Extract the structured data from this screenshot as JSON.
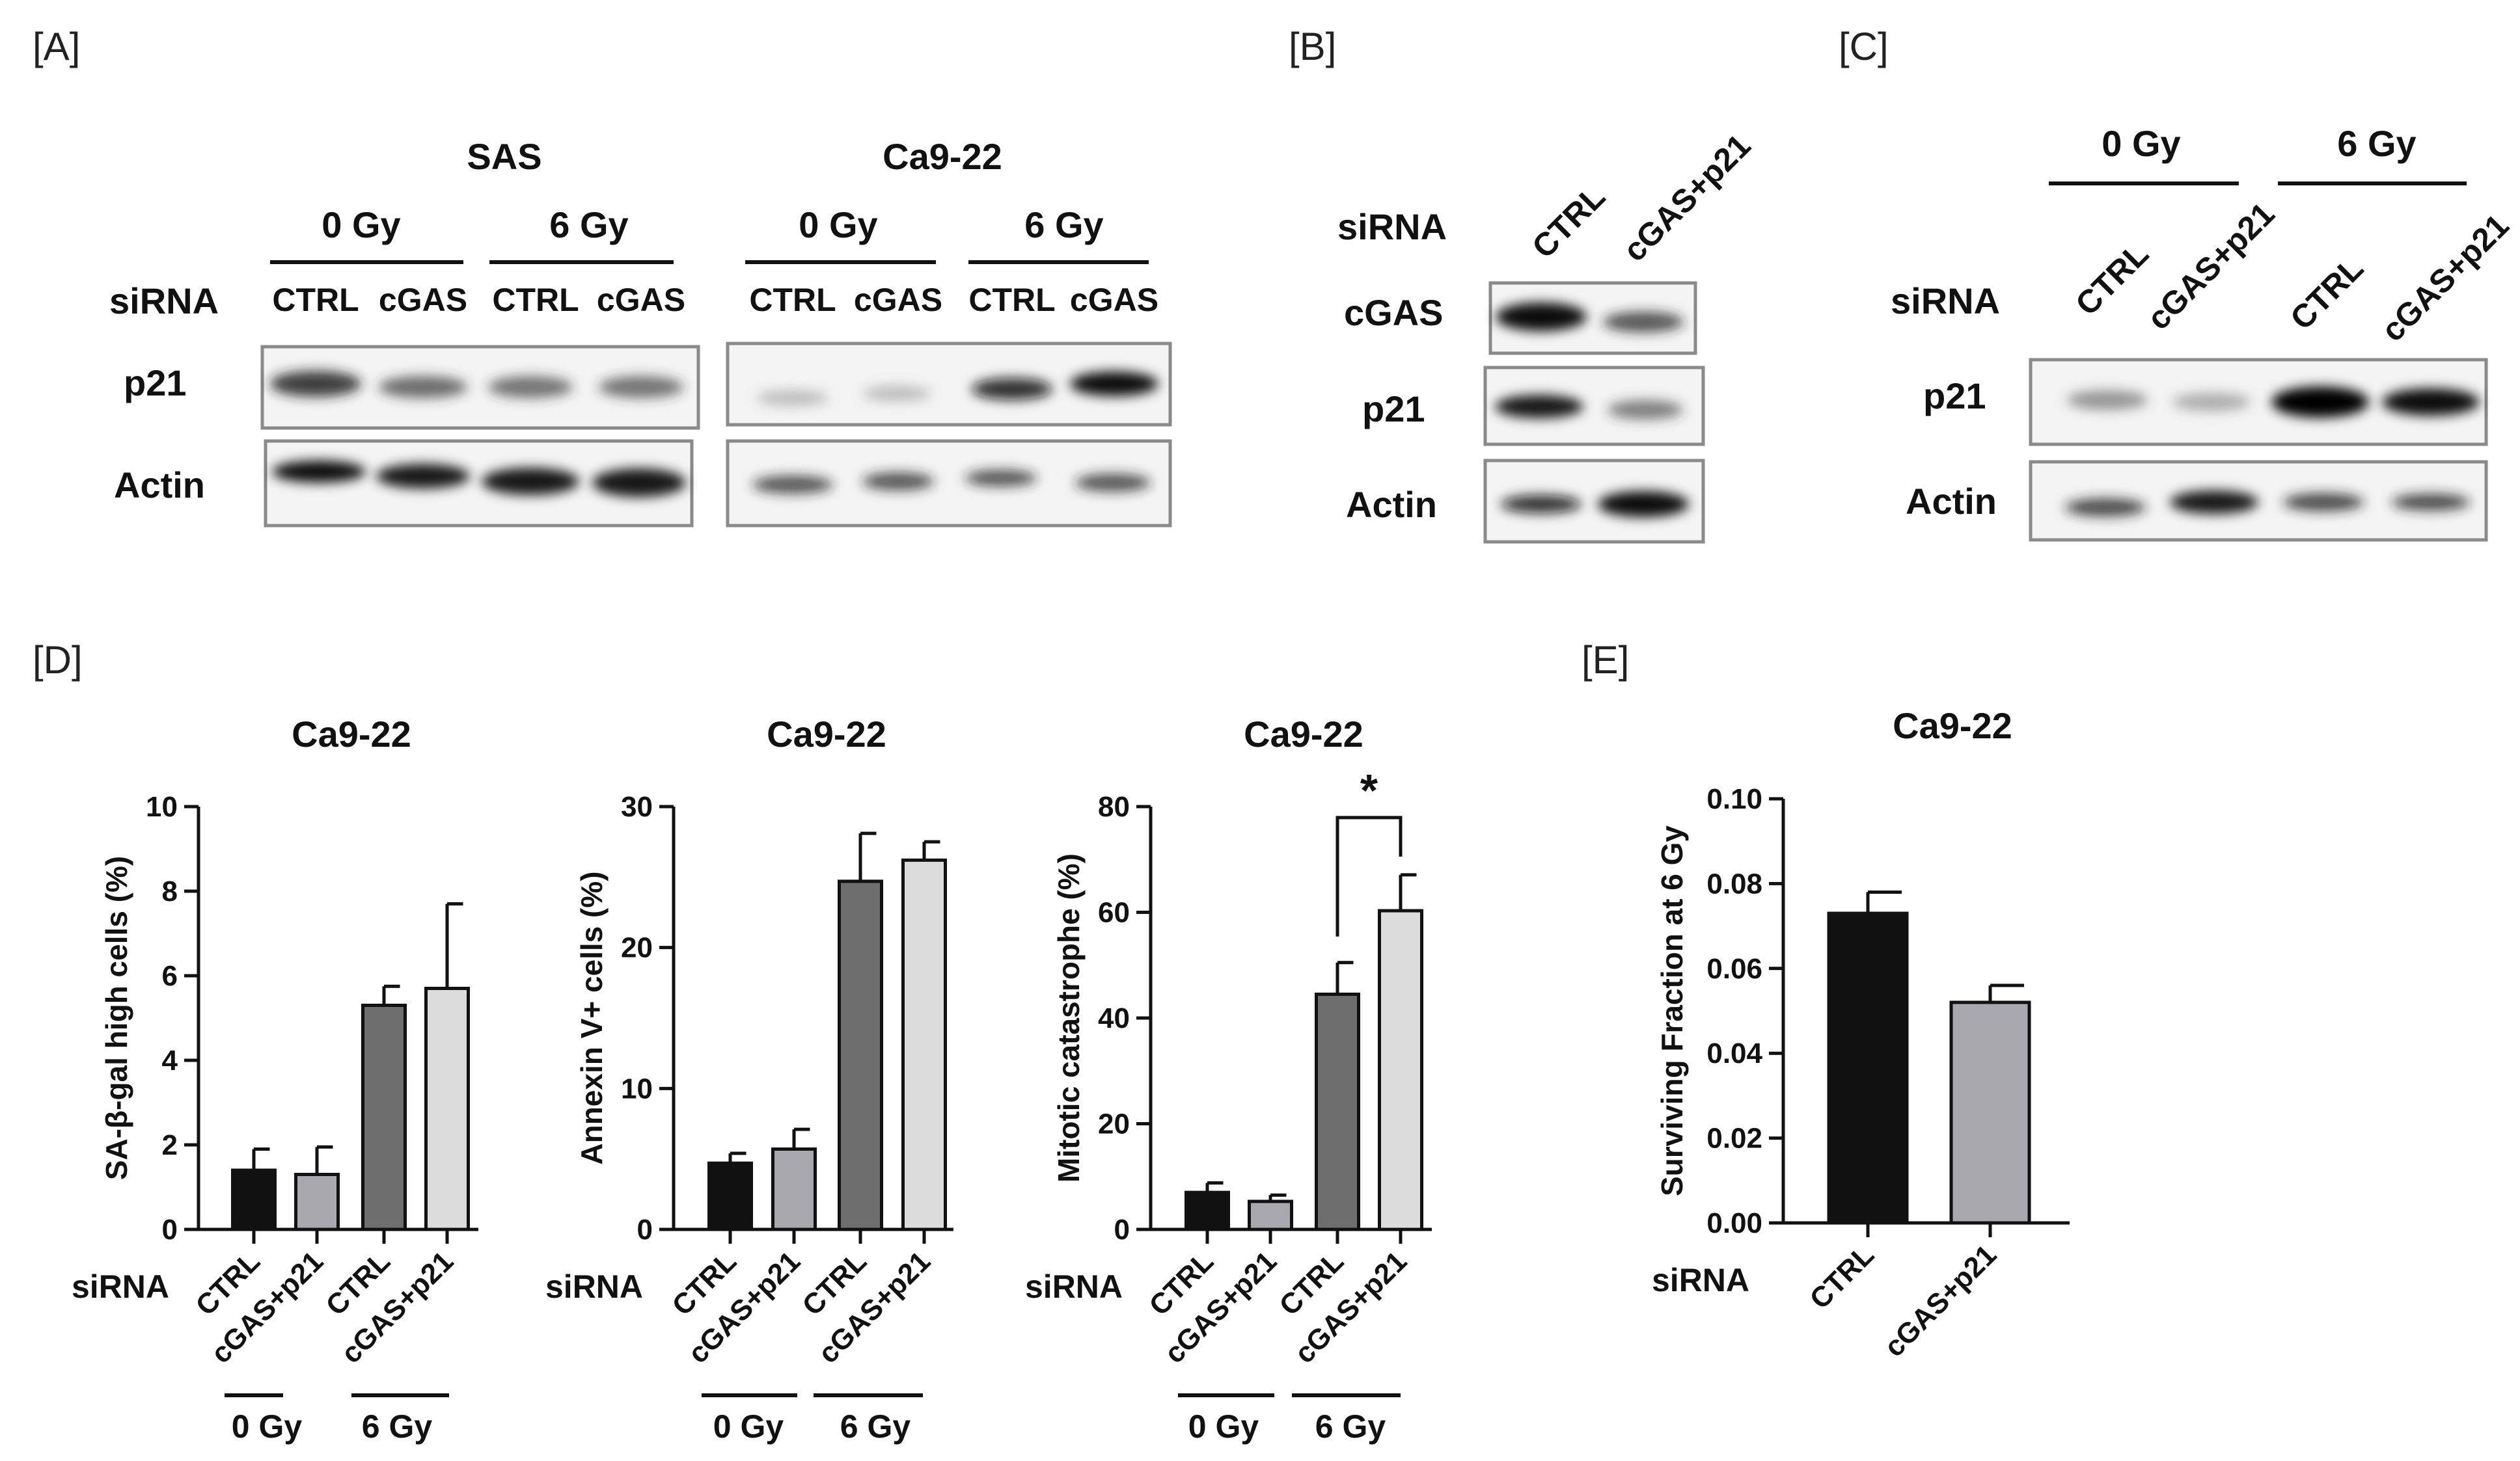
{
  "panels": {
    "A": {
      "label": "[A]",
      "row_label_sirna": "siRNA",
      "cell_lines": [
        {
          "name": "SAS",
          "doses": [
            "0 Gy",
            "6 Gy"
          ],
          "lanes": [
            "CTRL",
            "cGAS",
            "CTRL",
            "cGAS"
          ]
        },
        {
          "name": "Ca9-22",
          "doses": [
            "0 Gy",
            "6 Gy"
          ],
          "lanes": [
            "CTRL",
            "cGAS",
            "CTRL",
            "cGAS"
          ]
        }
      ],
      "blot_rows": [
        "p21",
        "Actin"
      ]
    },
    "B": {
      "label": "[B]",
      "row_label_sirna": "siRNA",
      "lanes": [
        "CTRL",
        "cGAS+p21"
      ],
      "blot_rows": [
        "cGAS",
        "p21",
        "Actin"
      ]
    },
    "C": {
      "label": "[C]",
      "row_label_sirna": "siRNA",
      "doses": [
        "0 Gy",
        "6 Gy"
      ],
      "lanes": [
        "CTRL",
        "cGAS+p21",
        "CTRL",
        "cGAS+p21"
      ],
      "blot_rows": [
        "p21",
        "Actin"
      ]
    },
    "D": {
      "label": "[D]"
    },
    "E": {
      "label": "[E]"
    }
  },
  "colors": {
    "black_bar": "#111111",
    "gray_bar": "#a8a8ae",
    "dark_gray_bar": "#6e6e6e",
    "light_gray_bar": "#dcdcdc"
  },
  "chart_data": [
    {
      "type": "bar",
      "title": "Ca9-22",
      "ylabel": "SA-β-gal high cells (%)",
      "ylim": [
        0,
        10
      ],
      "yticks": [
        "0",
        "2",
        "4",
        "6",
        "8",
        "10"
      ],
      "categories": [
        "CTRL",
        "cGAS+p21",
        "CTRL",
        "cGAS+p21"
      ],
      "values": [
        1.4,
        1.3,
        5.3,
        5.7
      ],
      "errors": [
        0.5,
        0.65,
        0.45,
        2.0
      ],
      "x_row_label": "siRNA",
      "groups": [
        "0 Gy",
        "6 Gy"
      ],
      "significance": ""
    },
    {
      "type": "bar",
      "title": "Ca9-22",
      "ylabel": "Annexin V+ cells (%)",
      "ylim": [
        0,
        30
      ],
      "yticks": [
        "0",
        "10",
        "20",
        "30"
      ],
      "categories": [
        "CTRL",
        "cGAS+p21",
        "CTRL",
        "cGAS+p21"
      ],
      "values": [
        4.7,
        5.7,
        24.7,
        26.2
      ],
      "errors": [
        0.7,
        1.4,
        3.4,
        1.3
      ],
      "x_row_label": "siRNA",
      "groups": [
        "0 Gy",
        "6 Gy"
      ],
      "significance": ""
    },
    {
      "type": "bar",
      "title": "Ca9-22",
      "ylabel": "Mitotic catastrophe (%)",
      "ylim": [
        0,
        80
      ],
      "yticks": [
        "0",
        "20",
        "40",
        "60",
        "80"
      ],
      "categories": [
        "CTRL",
        "cGAS+p21",
        "CTRL",
        "cGAS+p21"
      ],
      "values": [
        7.0,
        5.3,
        44.5,
        60.3
      ],
      "errors": [
        1.8,
        1.2,
        6.0,
        6.8
      ],
      "x_row_label": "siRNA",
      "groups": [
        "0 Gy",
        "6 Gy"
      ],
      "significance": "*"
    },
    {
      "type": "bar",
      "title": "Ca9-22",
      "ylabel": "Surviving Fraction at 6 Gy",
      "ylim": [
        0,
        0.1
      ],
      "yticks": [
        "0.00",
        "0.02",
        "0.04",
        "0.06",
        "0.08",
        "0.10"
      ],
      "categories": [
        "CTRL",
        "cGAS+p21"
      ],
      "values": [
        0.073,
        0.052
      ],
      "errors": [
        0.005,
        0.004
      ],
      "x_row_label": "siRNA",
      "groups": [],
      "significance": ""
    }
  ]
}
